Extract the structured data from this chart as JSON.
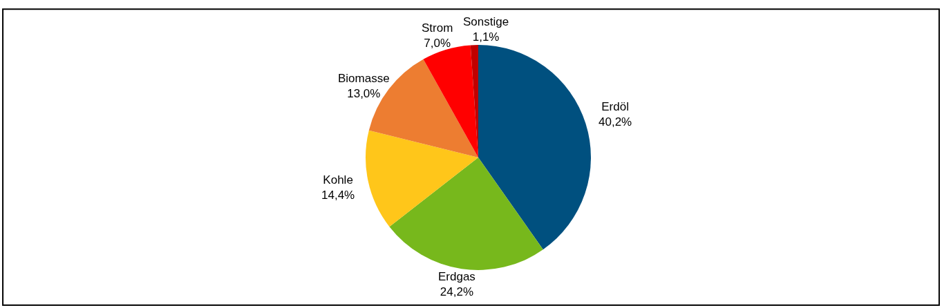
{
  "chart_data": {
    "type": "pie",
    "categories": [
      "Erdöl",
      "Erdgas",
      "Kohle",
      "Biomasse",
      "Strom",
      "Sonstige"
    ],
    "values": [
      40.2,
      24.2,
      14.4,
      13.0,
      7.0,
      1.1
    ],
    "value_labels": [
      "40,2%",
      "24,2%",
      "14,4%",
      "13,0%",
      "7,0%",
      "1,1%"
    ],
    "colors": [
      "#00507f",
      "#77b81c",
      "#ffc61a",
      "#ed7d31",
      "#ff0000",
      "#c00000"
    ],
    "legend": false
  }
}
